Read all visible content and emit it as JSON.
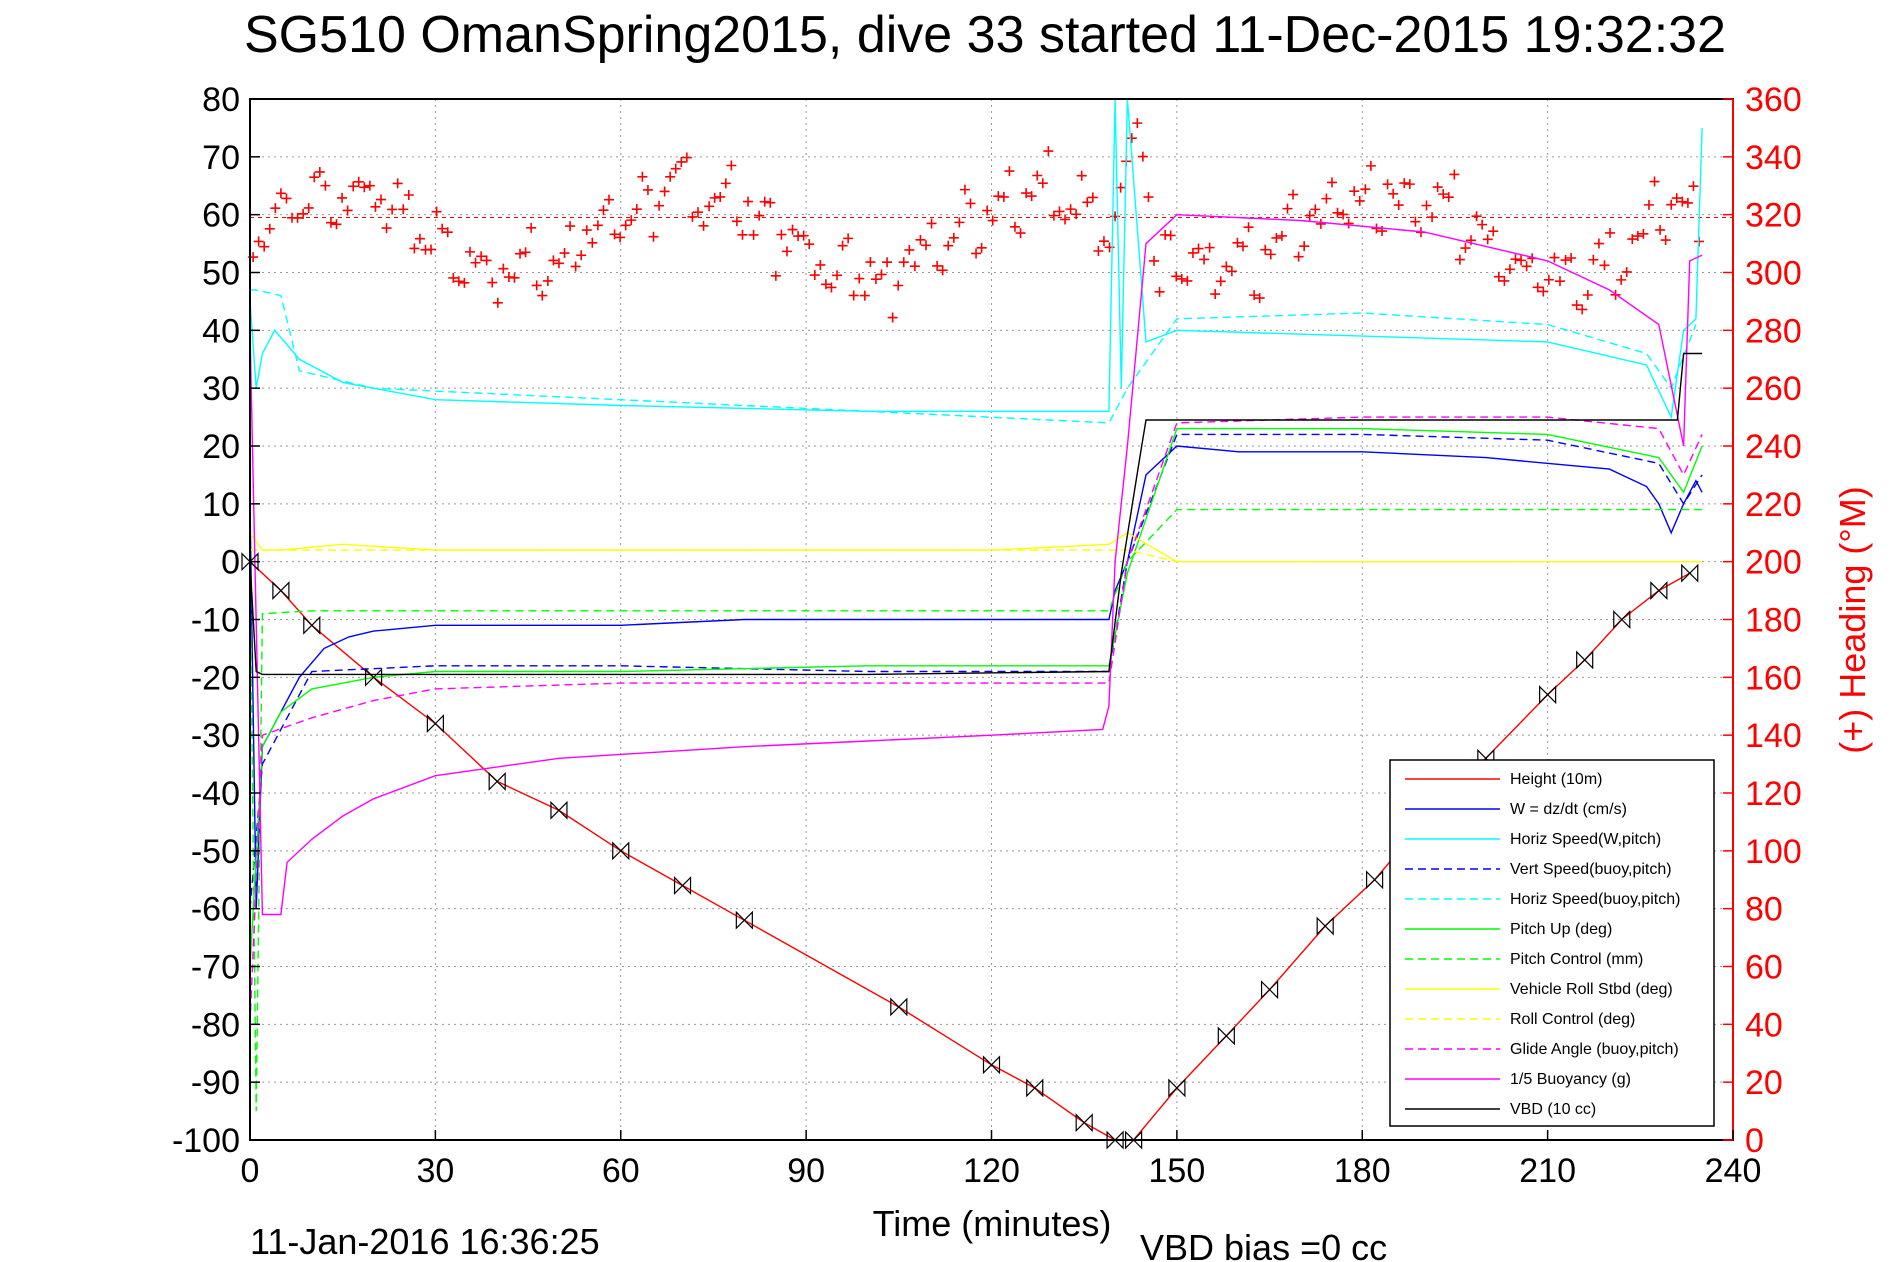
{
  "chart_data": {
    "type": "line",
    "title": "SG510 OmanSpring2015, dive 33 started 11-Dec-2015 19:32:32",
    "xlabel": "Time (minutes)",
    "ylabel": "",
    "ylabel_right": "(+) Heading (°M)",
    "xlim": [
      0,
      240
    ],
    "ylim": [
      -100,
      80
    ],
    "ylim_right": [
      0,
      360
    ],
    "x_ticks": [
      0,
      30,
      60,
      90,
      120,
      150,
      180,
      210,
      240
    ],
    "y_ticks": [
      80,
      70,
      60,
      50,
      40,
      30,
      20,
      10,
      0,
      -10,
      -20,
      -30,
      -40,
      -50,
      -60,
      -70,
      -80,
      -90,
      -100
    ],
    "y_ticks_right": [
      360,
      340,
      320,
      300,
      280,
      260,
      240,
      220,
      200,
      180,
      160,
      140,
      120,
      100,
      80,
      60,
      40,
      20,
      0
    ],
    "grid": true,
    "legend_position": "bottom-right",
    "footer_left": "11-Jan-2016 16:36:25",
    "footer_right": "VBD bias =0 cc",
    "heading_mean": 319,
    "series": [
      {
        "name": "Height (10m)",
        "color": "#ff0000",
        "style": "solid",
        "x": [
          0,
          5,
          10,
          20,
          30,
          40,
          50,
          60,
          70,
          80,
          105,
          120,
          127,
          135,
          140,
          143,
          150,
          158,
          165,
          174,
          182,
          190,
          200,
          210,
          216,
          222,
          228,
          233
        ],
        "y": [
          0,
          -5,
          -11,
          -20,
          -28,
          -38,
          -43,
          -50,
          -56,
          -62,
          -77,
          -87,
          -91,
          -97,
          -100,
          -100,
          -91,
          -82,
          -74,
          -63,
          -55,
          -45,
          -34,
          -23,
          -17,
          -10,
          -5,
          -2
        ]
      },
      {
        "name": "W = dz/dt (cm/s)",
        "color": "#0000ff",
        "style": "solid",
        "x": [
          0,
          1,
          2,
          4,
          8,
          12,
          16,
          20,
          30,
          40,
          60,
          80,
          100,
          120,
          139,
          140,
          142,
          145,
          150,
          160,
          180,
          200,
          220,
          226,
          228,
          230,
          232,
          234,
          235
        ],
        "y": [
          10,
          -60,
          -32,
          -28,
          -20,
          -15,
          -13,
          -12,
          -11,
          -11,
          -11,
          -10,
          -10,
          -10,
          -10,
          -5,
          0,
          15,
          20,
          19,
          19,
          18,
          16,
          13,
          10,
          5,
          10,
          14,
          12
        ]
      },
      {
        "name": "Horiz Speed(W,pitch)",
        "color": "#00ffff",
        "style": "solid",
        "x": [
          0,
          1,
          2,
          4,
          8,
          15,
          30,
          60,
          100,
          139,
          140,
          141,
          142,
          145,
          150,
          180,
          210,
          226,
          230,
          232,
          234,
          235
        ],
        "y": [
          45,
          30,
          36,
          40,
          35,
          31,
          28,
          27,
          26,
          26,
          80,
          30,
          80,
          38,
          40,
          39,
          38,
          34,
          25,
          40,
          42,
          75
        ]
      },
      {
        "name": "Vert Speed(buoy,pitch)",
        "color": "#0000ff",
        "style": "dashed",
        "x": [
          0,
          2,
          10,
          30,
          60,
          100,
          139,
          142,
          150,
          180,
          210,
          228,
          232,
          235
        ],
        "y": [
          -60,
          -35,
          -19,
          -18,
          -18,
          -19,
          -19,
          0,
          22,
          22,
          21,
          17,
          10,
          15
        ]
      },
      {
        "name": "Horiz Speed(buoy,pitch)",
        "color": "#00ffff",
        "style": "dashed",
        "x": [
          0,
          1,
          5,
          8,
          20,
          60,
          100,
          139,
          142,
          150,
          180,
          210,
          226,
          230,
          234
        ],
        "y": [
          47,
          47,
          46,
          33,
          30,
          28,
          26,
          24,
          30,
          42,
          43,
          41,
          36,
          30,
          41
        ]
      },
      {
        "name": "Pitch Up (deg)",
        "color": "#00ff00",
        "style": "solid",
        "x": [
          0,
          2,
          5,
          10,
          20,
          30,
          60,
          100,
          139,
          142,
          150,
          180,
          210,
          228,
          232,
          235
        ],
        "y": [
          -70,
          -32,
          -26,
          -22,
          -20,
          -19,
          -19,
          -18,
          -18,
          -2,
          23,
          23,
          22,
          18,
          12,
          20
        ]
      },
      {
        "name": "Pitch Control (mm)",
        "color": "#00ff00",
        "style": "dashed",
        "x": [
          0,
          1,
          2,
          10,
          60,
          139,
          142,
          150,
          210,
          232,
          235
        ],
        "y": [
          0,
          -95,
          -9,
          -8.5,
          -8.5,
          -8.5,
          0,
          9,
          9,
          9,
          9
        ]
      },
      {
        "name": "Vehicle Roll Stbd (deg)",
        "color": "#ffff00",
        "style": "solid",
        "x": [
          0,
          2,
          5,
          15,
          30,
          60,
          90,
          120,
          139,
          142,
          150,
          180,
          210,
          232,
          235
        ],
        "y": [
          5,
          2,
          2,
          3,
          2,
          2,
          2,
          2,
          3,
          5,
          0,
          0,
          0,
          0,
          0
        ]
      },
      {
        "name": "Roll Control (deg)",
        "color": "#ffff00",
        "style": "dashed",
        "x": [
          0,
          2,
          60,
          139,
          142,
          150,
          210,
          235
        ],
        "y": [
          2,
          2,
          2,
          2,
          2,
          0,
          0,
          0
        ]
      },
      {
        "name": "Glide Angle (buoy,pitch)",
        "color": "#ff00ff",
        "style": "dashed",
        "x": [
          0,
          2,
          10,
          20,
          30,
          60,
          100,
          139,
          142,
          150,
          180,
          210,
          228,
          232,
          235
        ],
        "y": [
          -80,
          -30,
          -27,
          -24,
          -22,
          -21,
          -21,
          -21,
          0,
          24,
          25,
          25,
          23,
          15,
          22
        ]
      },
      {
        "name": "1/5 Buoyancy (g)",
        "color": "#ff00ff",
        "style": "solid",
        "x": [
          0,
          2,
          5,
          6,
          10,
          15,
          20,
          30,
          50,
          80,
          100,
          120,
          138,
          139,
          140,
          142,
          145,
          150,
          170,
          190,
          210,
          220,
          228,
          232,
          233,
          235
        ],
        "y": [
          40,
          -61,
          -61,
          -52,
          -48,
          -44,
          -41,
          -37,
          -34,
          -32,
          -31,
          -30,
          -29,
          -25,
          0,
          20,
          55,
          60,
          59,
          57,
          52,
          47,
          41,
          20,
          52,
          53
        ]
      },
      {
        "name": "VBD (10 cc)",
        "color": "#000000",
        "style": "solid",
        "x": [
          0,
          1,
          2,
          5,
          60,
          100,
          139,
          141,
          144,
          145,
          160,
          200,
          231,
          232,
          235
        ],
        "y": [
          0,
          -19,
          -19.5,
          -19.5,
          -19.5,
          -19.5,
          -19,
          -2,
          18,
          24.5,
          24.5,
          24.5,
          24.5,
          36,
          36
        ]
      }
    ]
  }
}
